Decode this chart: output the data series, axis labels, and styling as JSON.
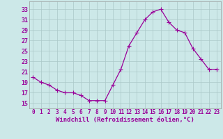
{
  "x": [
    0,
    1,
    2,
    3,
    4,
    5,
    6,
    7,
    8,
    9,
    10,
    11,
    12,
    13,
    14,
    15,
    16,
    17,
    18,
    19,
    20,
    21,
    22,
    23
  ],
  "y": [
    20.0,
    19.0,
    18.5,
    17.5,
    17.0,
    17.0,
    16.5,
    15.5,
    15.5,
    15.5,
    18.5,
    21.5,
    26.0,
    28.5,
    31.0,
    32.5,
    33.0,
    30.5,
    29.0,
    28.5,
    25.5,
    23.5,
    21.5,
    21.5
  ],
  "line_color": "#990099",
  "marker": "+",
  "marker_size": 4,
  "bg_color": "#cce8e8",
  "grid_color": "#aac8c8",
  "xlabel": "Windchill (Refroidissement éolien,°C)",
  "xlabel_color": "#990099",
  "xlabel_fontsize": 6.5,
  "ytick_labels": [
    "15",
    "17",
    "19",
    "21",
    "23",
    "25",
    "27",
    "29",
    "31",
    "33"
  ],
  "ytick_values": [
    15,
    17,
    19,
    21,
    23,
    25,
    27,
    29,
    31,
    33
  ],
  "ylim": [
    14.0,
    34.5
  ],
  "xlim": [
    -0.5,
    23.5
  ],
  "xtick_labels": [
    "0",
    "1",
    "2",
    "3",
    "4",
    "5",
    "6",
    "7",
    "8",
    "9",
    "10",
    "11",
    "12",
    "13",
    "14",
    "15",
    "16",
    "17",
    "18",
    "19",
    "20",
    "21",
    "22",
    "23"
  ],
  "xtick_fontsize": 5.5,
  "ytick_fontsize": 6.0,
  "tick_color": "#990099",
  "spine_color": "#999999",
  "linewidth": 0.9
}
